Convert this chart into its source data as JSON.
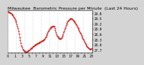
{
  "title": "Milwaukee  Barometric Pressure per Minute  (Last 24 Hours)",
  "line_color": "#cc0000",
  "bg_color": "#d4d4d4",
  "plot_bg": "#ffffff",
  "grid_color": "#888888",
  "y_values": [
    29.92,
    29.9,
    29.88,
    29.86,
    29.84,
    29.81,
    29.78,
    29.74,
    29.7,
    29.65,
    29.6,
    29.54,
    29.47,
    29.39,
    29.3,
    29.2,
    29.08,
    28.95,
    28.8,
    28.63,
    28.45,
    28.28,
    28.12,
    27.98,
    27.87,
    27.78,
    27.72,
    27.68,
    27.65,
    27.63,
    27.62,
    27.61,
    27.62,
    27.63,
    27.65,
    27.67,
    27.7,
    27.73,
    27.76,
    27.79,
    27.82,
    27.85,
    27.88,
    27.91,
    27.94,
    27.97,
    28.0,
    28.02,
    28.04,
    28.06,
    28.08,
    28.1,
    28.12,
    28.13,
    28.15,
    28.17,
    28.19,
    28.21,
    28.23,
    28.25,
    28.27,
    28.3,
    28.33,
    28.37,
    28.42,
    28.48,
    28.55,
    28.62,
    28.7,
    28.78,
    28.85,
    28.91,
    28.96,
    29.0,
    29.03,
    29.05,
    29.07,
    29.08,
    29.08,
    29.07,
    28.95,
    28.82,
    28.7,
    28.6,
    28.52,
    28.46,
    28.42,
    28.39,
    28.37,
    28.36,
    28.37,
    28.4,
    28.45,
    28.52,
    28.6,
    28.7,
    28.8,
    28.9,
    29.0,
    29.1,
    29.2,
    29.28,
    29.35,
    29.4,
    29.44,
    29.47,
    29.49,
    29.5,
    29.5,
    29.49,
    29.47,
    29.44,
    29.4,
    29.36,
    29.31,
    29.26,
    29.2,
    29.14,
    29.08,
    29.01,
    28.94,
    28.87,
    28.8,
    28.73,
    28.66,
    28.59,
    28.52,
    28.45,
    28.38,
    28.31,
    28.24,
    28.17,
    28.1,
    28.03,
    27.97,
    27.92,
    27.87,
    27.83,
    27.8,
    27.78,
    27.77,
    27.77,
    27.78,
    27.8
  ],
  "y_tick_values": [
    29.8,
    29.5,
    29.2,
    28.9,
    28.6,
    28.3,
    28.0,
    27.7
  ],
  "num_vgrid": 11,
  "title_fontsize": 4.5,
  "tick_fontsize": 3.5
}
